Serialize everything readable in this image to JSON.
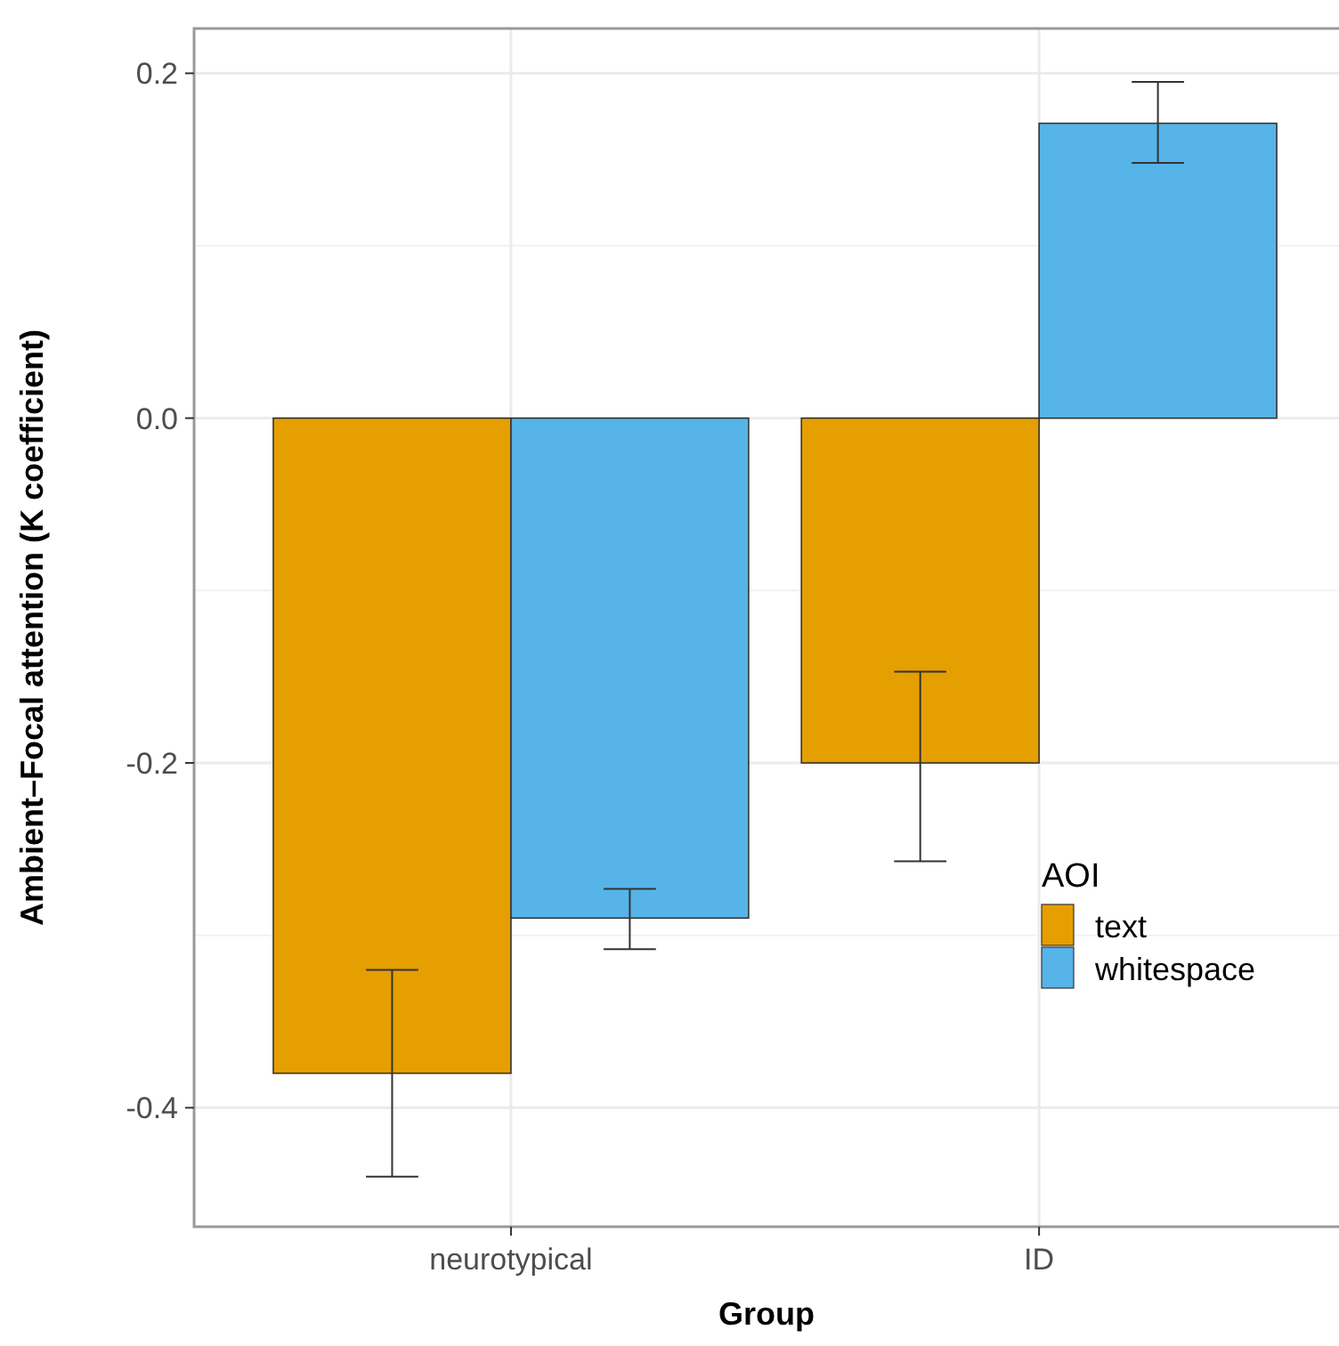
{
  "chart_data": {
    "type": "bar",
    "xlabel": "Group",
    "ylabel": "Ambient–Focal attention (K coefficient)",
    "legend_title": "AOI",
    "categories": [
      "neurotypical",
      "ID"
    ],
    "series": [
      {
        "name": "text",
        "color": "#e69f00",
        "values": [
          -0.38,
          -0.2
        ],
        "errors": [
          [
            -0.44,
            -0.32
          ],
          [
            -0.257,
            -0.147
          ]
        ]
      },
      {
        "name": "whitespace",
        "color": "#56b4e9",
        "values": [
          -0.29,
          0.171
        ],
        "errors": [
          [
            -0.308,
            -0.273
          ],
          [
            0.148,
            0.195
          ]
        ]
      }
    ],
    "ylim": [
      -0.469,
      0.226
    ],
    "yticks": [
      {
        "value": -0.4,
        "label": "-0.4"
      },
      {
        "value": -0.2,
        "label": "-0.2"
      },
      {
        "value": 0,
        "label": "0.0"
      },
      {
        "value": 0.2,
        "label": "0.2"
      }
    ],
    "grid": true,
    "legend": "right"
  }
}
